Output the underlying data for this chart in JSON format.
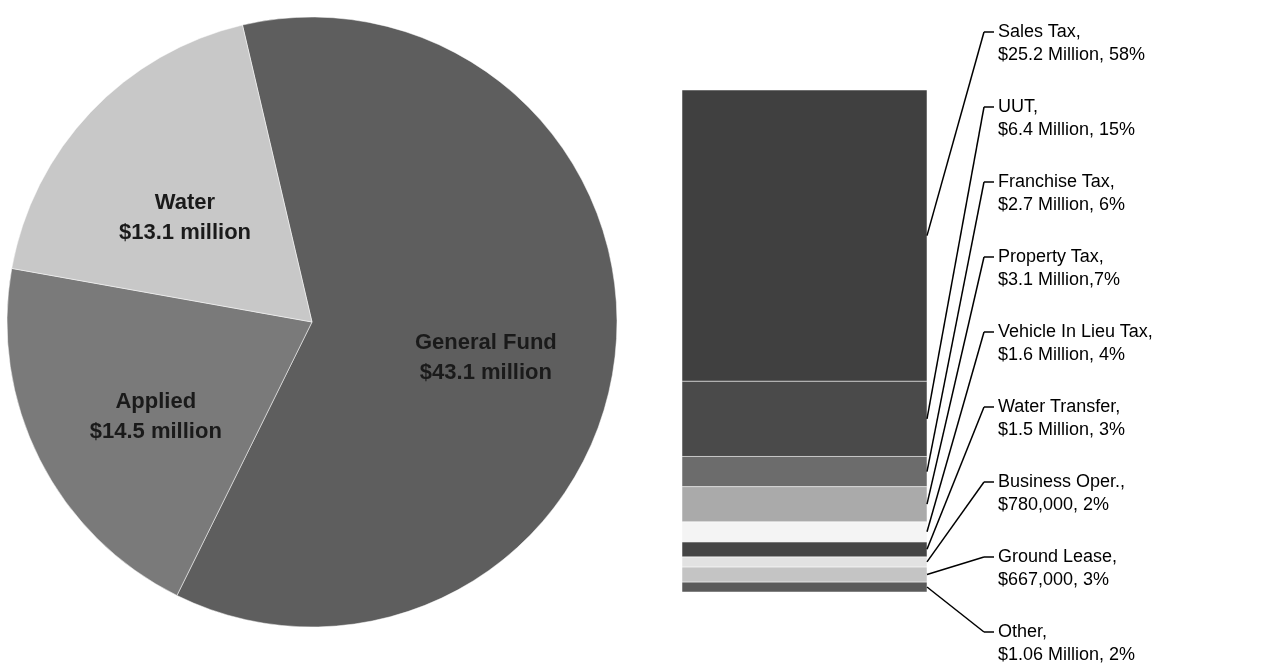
{
  "chart_data": [
    {
      "type": "pie",
      "categories": [
        "General Fund",
        "Applied",
        "Water"
      ],
      "values": [
        43.1,
        14.5,
        13.1
      ],
      "colors": [
        "#5e5e5e",
        "#7a7a7a",
        "#c8c8c8"
      ],
      "value_labels": [
        "$43.1 million",
        "$14.5 million",
        "$13.1 million"
      ]
    },
    {
      "type": "bar",
      "stacked": true,
      "categories": [
        null
      ],
      "series": [
        {
          "name": "Other,",
          "color": "#5a5a5a",
          "values": [
            2
          ],
          "value_labels": [
            "$1.06 Million, 2%"
          ]
        },
        {
          "name": "Ground Lease,",
          "color": "#c4c4c4",
          "values": [
            3
          ],
          "value_labels": [
            "$667,000, 3%"
          ]
        },
        {
          "name": "Business Oper.,",
          "color": "#e2e2e2",
          "values": [
            2
          ],
          "value_labels": [
            "$780,000, 2%"
          ]
        },
        {
          "name": "Water Transfer,",
          "color": "#454545",
          "values": [
            3
          ],
          "value_labels": [
            "$1.5 Million, 3%"
          ]
        },
        {
          "name": "Vehicle In Lieu Tax,",
          "color": "#f4f4f4",
          "values": [
            4
          ],
          "value_labels": [
            "$1.6 Million, 4%"
          ]
        },
        {
          "name": "Property Tax,",
          "color": "#aaaaaa",
          "values": [
            7
          ],
          "value_labels": [
            "$3.1 Million,7%"
          ]
        },
        {
          "name": "Franchise Tax,",
          "color": "#6c6c6c",
          "values": [
            6
          ],
          "value_labels": [
            "$2.7 Million, 6%"
          ]
        },
        {
          "name": "UUT,",
          "color": "#4a4a4a",
          "values": [
            15
          ],
          "value_labels": [
            "$6.4 Million, 15%"
          ]
        },
        {
          "name": "Sales Tax,",
          "color": "#404040",
          "values": [
            58
          ],
          "value_labels": [
            "$25.2 Million, 58%"
          ]
        }
      ]
    }
  ]
}
